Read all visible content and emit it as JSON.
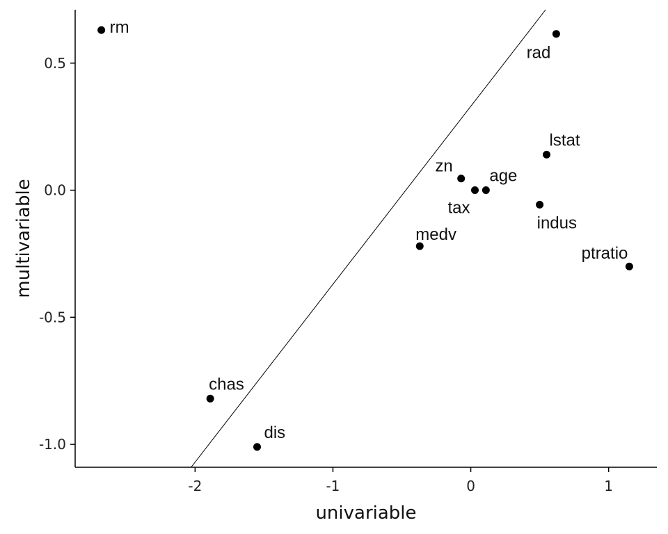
{
  "chart_data": {
    "type": "scatter",
    "title": "",
    "xlabel": "univariable",
    "ylabel": "multivariable",
    "xlim": [
      -2.87,
      1.35
    ],
    "ylim": [
      -1.09,
      0.71
    ],
    "x_ticks": [
      -2,
      -1,
      0,
      1
    ],
    "x_tick_labels": [
      "-2",
      "-1",
      "0",
      "1"
    ],
    "y_ticks": [
      -1.0,
      -0.5,
      0.0,
      0.5
    ],
    "y_tick_labels": [
      "-1.0",
      "-0.5",
      "0.0",
      "0.5"
    ],
    "grid": false,
    "legend": "none",
    "point_color": "#000000",
    "points": [
      {
        "label": "rm",
        "x": -2.68,
        "y": 0.63
      },
      {
        "label": "rad",
        "x": 0.62,
        "y": 0.615
      },
      {
        "label": "lstat",
        "x": 0.55,
        "y": 0.14
      },
      {
        "label": "zn",
        "x": -0.07,
        "y": 0.046
      },
      {
        "label": "tax",
        "x": 0.03,
        "y": 0.0
      },
      {
        "label": "age",
        "x": 0.11,
        "y": 0.0
      },
      {
        "label": "indus",
        "x": 0.5,
        "y": -0.057
      },
      {
        "label": "medv",
        "x": -0.37,
        "y": -0.22
      },
      {
        "label": "ptratio",
        "x": 1.15,
        "y": -0.3
      },
      {
        "label": "chas",
        "x": -1.89,
        "y": -0.82
      },
      {
        "label": "dis",
        "x": -1.55,
        "y": -1.01
      }
    ],
    "reference_line": {
      "intercept": 0.33,
      "slope": 0.7
    }
  }
}
